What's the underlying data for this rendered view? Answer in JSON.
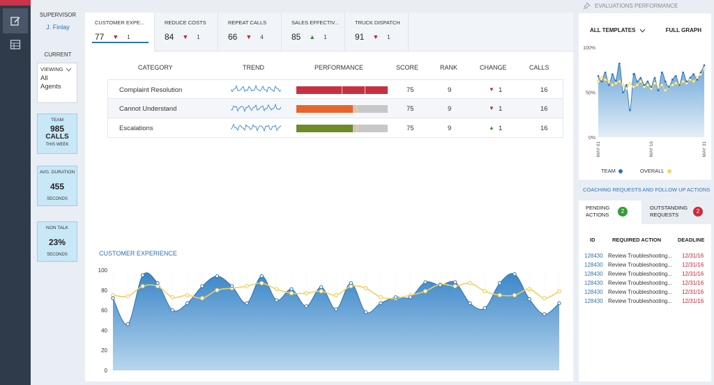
{
  "supervisor": {
    "label": "SUPERVISOR",
    "name": "J. Finlay"
  },
  "current": {
    "label": "CURRENT",
    "viewing_label": "VIEWING",
    "viewing_value_1": "All",
    "viewing_value_2": "Agents"
  },
  "stats": [
    {
      "title": "TEAM",
      "value": "985",
      "value2": "CALLS",
      "sub": "THIS WEEK"
    },
    {
      "title": "AVG. DURATION",
      "value": "455",
      "sub": "SECONDS"
    },
    {
      "title": "NON TALK",
      "value": "23%",
      "sub": "SECONDS"
    }
  ],
  "tabs": [
    {
      "name": "CUSTOMER EXPE...",
      "score": "77",
      "dir": "down",
      "change": "1"
    },
    {
      "name": "REDUCE COSTS",
      "score": "84",
      "dir": "down",
      "change": "1"
    },
    {
      "name": "REPEAT CALLS",
      "score": "66",
      "dir": "down",
      "change": "4"
    },
    {
      "name": "SALES EFFECTIV...",
      "score": "85",
      "dir": "up",
      "change": "1"
    },
    {
      "name": "TRUCK DISPATCH",
      "score": "91",
      "dir": "down",
      "change": "1"
    }
  ],
  "table": {
    "headers": {
      "category": "CATEGORY",
      "trend": "TREND",
      "performance": "PERFORMANCE",
      "score": "SCORE",
      "rank": "RANK",
      "change": "CHANGE",
      "calls": "CALLS"
    },
    "rows": [
      {
        "category": "Complaint Resolution",
        "score": "75",
        "rank": "9",
        "dir": "down",
        "change": "1",
        "calls": "16",
        "fill": 1.0,
        "color": "#c9303f"
      },
      {
        "category": "Cannot Understand",
        "score": "75",
        "rank": "9",
        "dir": "down",
        "change": "1",
        "calls": "16",
        "fill": 0.62,
        "color": "#e8642a"
      },
      {
        "category": "Escalations",
        "score": "75",
        "rank": "9",
        "dir": "up",
        "change": "1",
        "calls": "16",
        "fill": 0.62,
        "color": "#6e8a2a"
      }
    ]
  },
  "main_chart_title": "CUSTOMER EXPERIENCE",
  "chart_data": [
    {
      "type": "area",
      "title": "CUSTOMER EXPERIENCE",
      "xlabel": "",
      "ylabel": "",
      "ylim": [
        0,
        100
      ],
      "yticks": [
        0,
        20,
        40,
        60,
        80,
        100
      ],
      "grid": false,
      "series": [
        {
          "values": [
            72,
            46,
            95,
            87,
            60,
            67,
            84,
            94,
            84,
            67,
            94,
            70,
            81,
            64,
            83,
            61,
            87,
            58,
            67,
            73,
            73,
            88,
            85,
            88,
            67,
            62,
            87,
            96,
            71,
            56,
            67
          ]
        },
        {
          "values": [
            75,
            74,
            84,
            84,
            73,
            75,
            72,
            80,
            82,
            84,
            87,
            81,
            77,
            77,
            79,
            75,
            84,
            82,
            73,
            72,
            75,
            79,
            86,
            84,
            87,
            79,
            75,
            75,
            81,
            72,
            79
          ]
        }
      ]
    },
    {
      "type": "area",
      "title": "EVALUATIONS PERFORMANCE",
      "ylim": [
        0,
        100
      ],
      "yticks": [
        "0%",
        "50%",
        "100%"
      ],
      "xticks": [
        "MAY 01",
        "MAY 16",
        "MAY 31"
      ],
      "legend": "bottom",
      "series": [
        {
          "name": "TEAM",
          "values": [
            68,
            62,
            72,
            58,
            70,
            63,
            82,
            50,
            58,
            30,
            70,
            62,
            66,
            58,
            62,
            56,
            66,
            52,
            72,
            62,
            56,
            64,
            68,
            58,
            72,
            62,
            66,
            70,
            64,
            72,
            80
          ]
        },
        {
          "name": "OVERALL",
          "values": [
            62,
            66,
            64,
            62,
            58,
            60,
            62,
            58,
            54,
            60,
            56,
            58,
            62,
            56,
            58,
            54,
            60,
            56,
            58,
            52,
            56,
            58,
            60,
            58,
            62,
            60,
            64,
            62,
            66,
            70,
            76
          ]
        }
      ]
    }
  ],
  "evaluations": {
    "header": "EVALUATIONS PERFORMANCE",
    "templates": "ALL TEMPLATES",
    "full_graph": "FULL GRAPH",
    "legend_team": "TEAM",
    "legend_overall": "OVERALL",
    "team_color": "#2a73b5",
    "overall_color": "#f5d365"
  },
  "coaching": {
    "header": "COACHING REQUESTS AND FOLLOW UP ACTIONS",
    "pending_1": "PENDING",
    "pending_2": "ACTIONS",
    "pending_count": "2",
    "outstanding_1": "OUTSTANDING",
    "outstanding_2": "REQUESTS",
    "outstanding_count": "2",
    "col_id": "ID",
    "col_action": "REQUIRED ACTION",
    "col_deadline": "DEADLINE",
    "rows": [
      {
        "id": "128430",
        "action": "Review Troubleshooting...",
        "deadline": "12/31/16"
      },
      {
        "id": "128430",
        "action": "Review Troubleshooting...",
        "deadline": "12/31/16"
      },
      {
        "id": "128430",
        "action": "Review Troubleshooting...",
        "deadline": "12/31/16"
      },
      {
        "id": "128430",
        "action": "Review Troubleshooting...",
        "deadline": "12/31/16"
      },
      {
        "id": "128430",
        "action": "Review Troubleshooting...",
        "deadline": "12/31/16"
      },
      {
        "id": "128430",
        "action": "Review Troubleshooting...",
        "deadline": "12/31/16"
      }
    ]
  }
}
